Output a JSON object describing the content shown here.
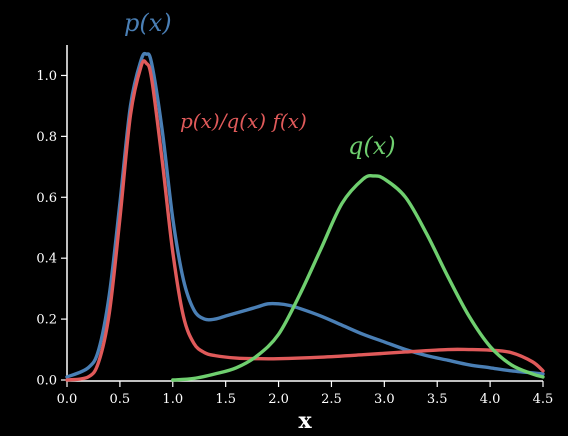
{
  "chart_data": {
    "type": "line",
    "xlabel": "x",
    "ylabel": "",
    "xlim": [
      0.0,
      4.5
    ],
    "ylim": [
      0.0,
      1.1
    ],
    "xticks": [
      "0.0",
      "0.5",
      "1.0",
      "1.5",
      "2.0",
      "2.5",
      "3.0",
      "3.5",
      "4.0",
      "4.5"
    ],
    "yticks": [
      "0.0",
      "0.2",
      "0.4",
      "0.6",
      "0.8",
      "1.0"
    ],
    "grid": false,
    "legend": "none",
    "series": [
      {
        "name": "p(x)",
        "color": "#4a7fb5",
        "x": [
          0.0,
          0.2,
          0.3,
          0.4,
          0.5,
          0.6,
          0.7,
          0.75,
          0.8,
          0.9,
          1.0,
          1.1,
          1.2,
          1.3,
          1.4,
          1.5,
          1.6,
          1.7,
          1.8,
          1.9,
          2.0,
          2.1,
          2.2,
          2.4,
          2.6,
          2.8,
          3.0,
          3.2,
          3.4,
          3.6,
          3.8,
          4.0,
          4.2,
          4.5
        ],
        "y": [
          0.01,
          0.04,
          0.1,
          0.28,
          0.58,
          0.9,
          1.05,
          1.07,
          1.04,
          0.82,
          0.53,
          0.33,
          0.23,
          0.2,
          0.2,
          0.21,
          0.22,
          0.23,
          0.24,
          0.25,
          0.25,
          0.245,
          0.235,
          0.21,
          0.18,
          0.15,
          0.125,
          0.1,
          0.08,
          0.065,
          0.05,
          0.04,
          0.03,
          0.02
        ]
      },
      {
        "name": "p(x)/q(x) f(x)",
        "color": "#e05a5a",
        "x": [
          0.0,
          0.2,
          0.3,
          0.4,
          0.5,
          0.6,
          0.7,
          0.75,
          0.8,
          0.9,
          1.0,
          1.1,
          1.2,
          1.3,
          1.4,
          1.6,
          1.8,
          2.0,
          2.4,
          2.8,
          3.2,
          3.6,
          3.8,
          4.0,
          4.2,
          4.4,
          4.5
        ],
        "y": [
          0.0,
          0.01,
          0.06,
          0.22,
          0.53,
          0.87,
          1.03,
          1.04,
          0.99,
          0.72,
          0.42,
          0.21,
          0.12,
          0.09,
          0.08,
          0.072,
          0.07,
          0.07,
          0.075,
          0.083,
          0.092,
          0.1,
          0.1,
          0.098,
          0.09,
          0.06,
          0.03
        ]
      },
      {
        "name": "q(x)",
        "color": "#6fcf6f",
        "x": [
          1.0,
          1.2,
          1.4,
          1.6,
          1.8,
          2.0,
          2.2,
          2.4,
          2.6,
          2.8,
          2.9,
          3.0,
          3.2,
          3.4,
          3.6,
          3.8,
          4.0,
          4.2,
          4.4,
          4.5
        ],
        "y": [
          0.0,
          0.005,
          0.02,
          0.04,
          0.08,
          0.15,
          0.28,
          0.43,
          0.58,
          0.66,
          0.67,
          0.66,
          0.6,
          0.48,
          0.34,
          0.21,
          0.11,
          0.05,
          0.02,
          0.01
        ]
      }
    ]
  }
}
